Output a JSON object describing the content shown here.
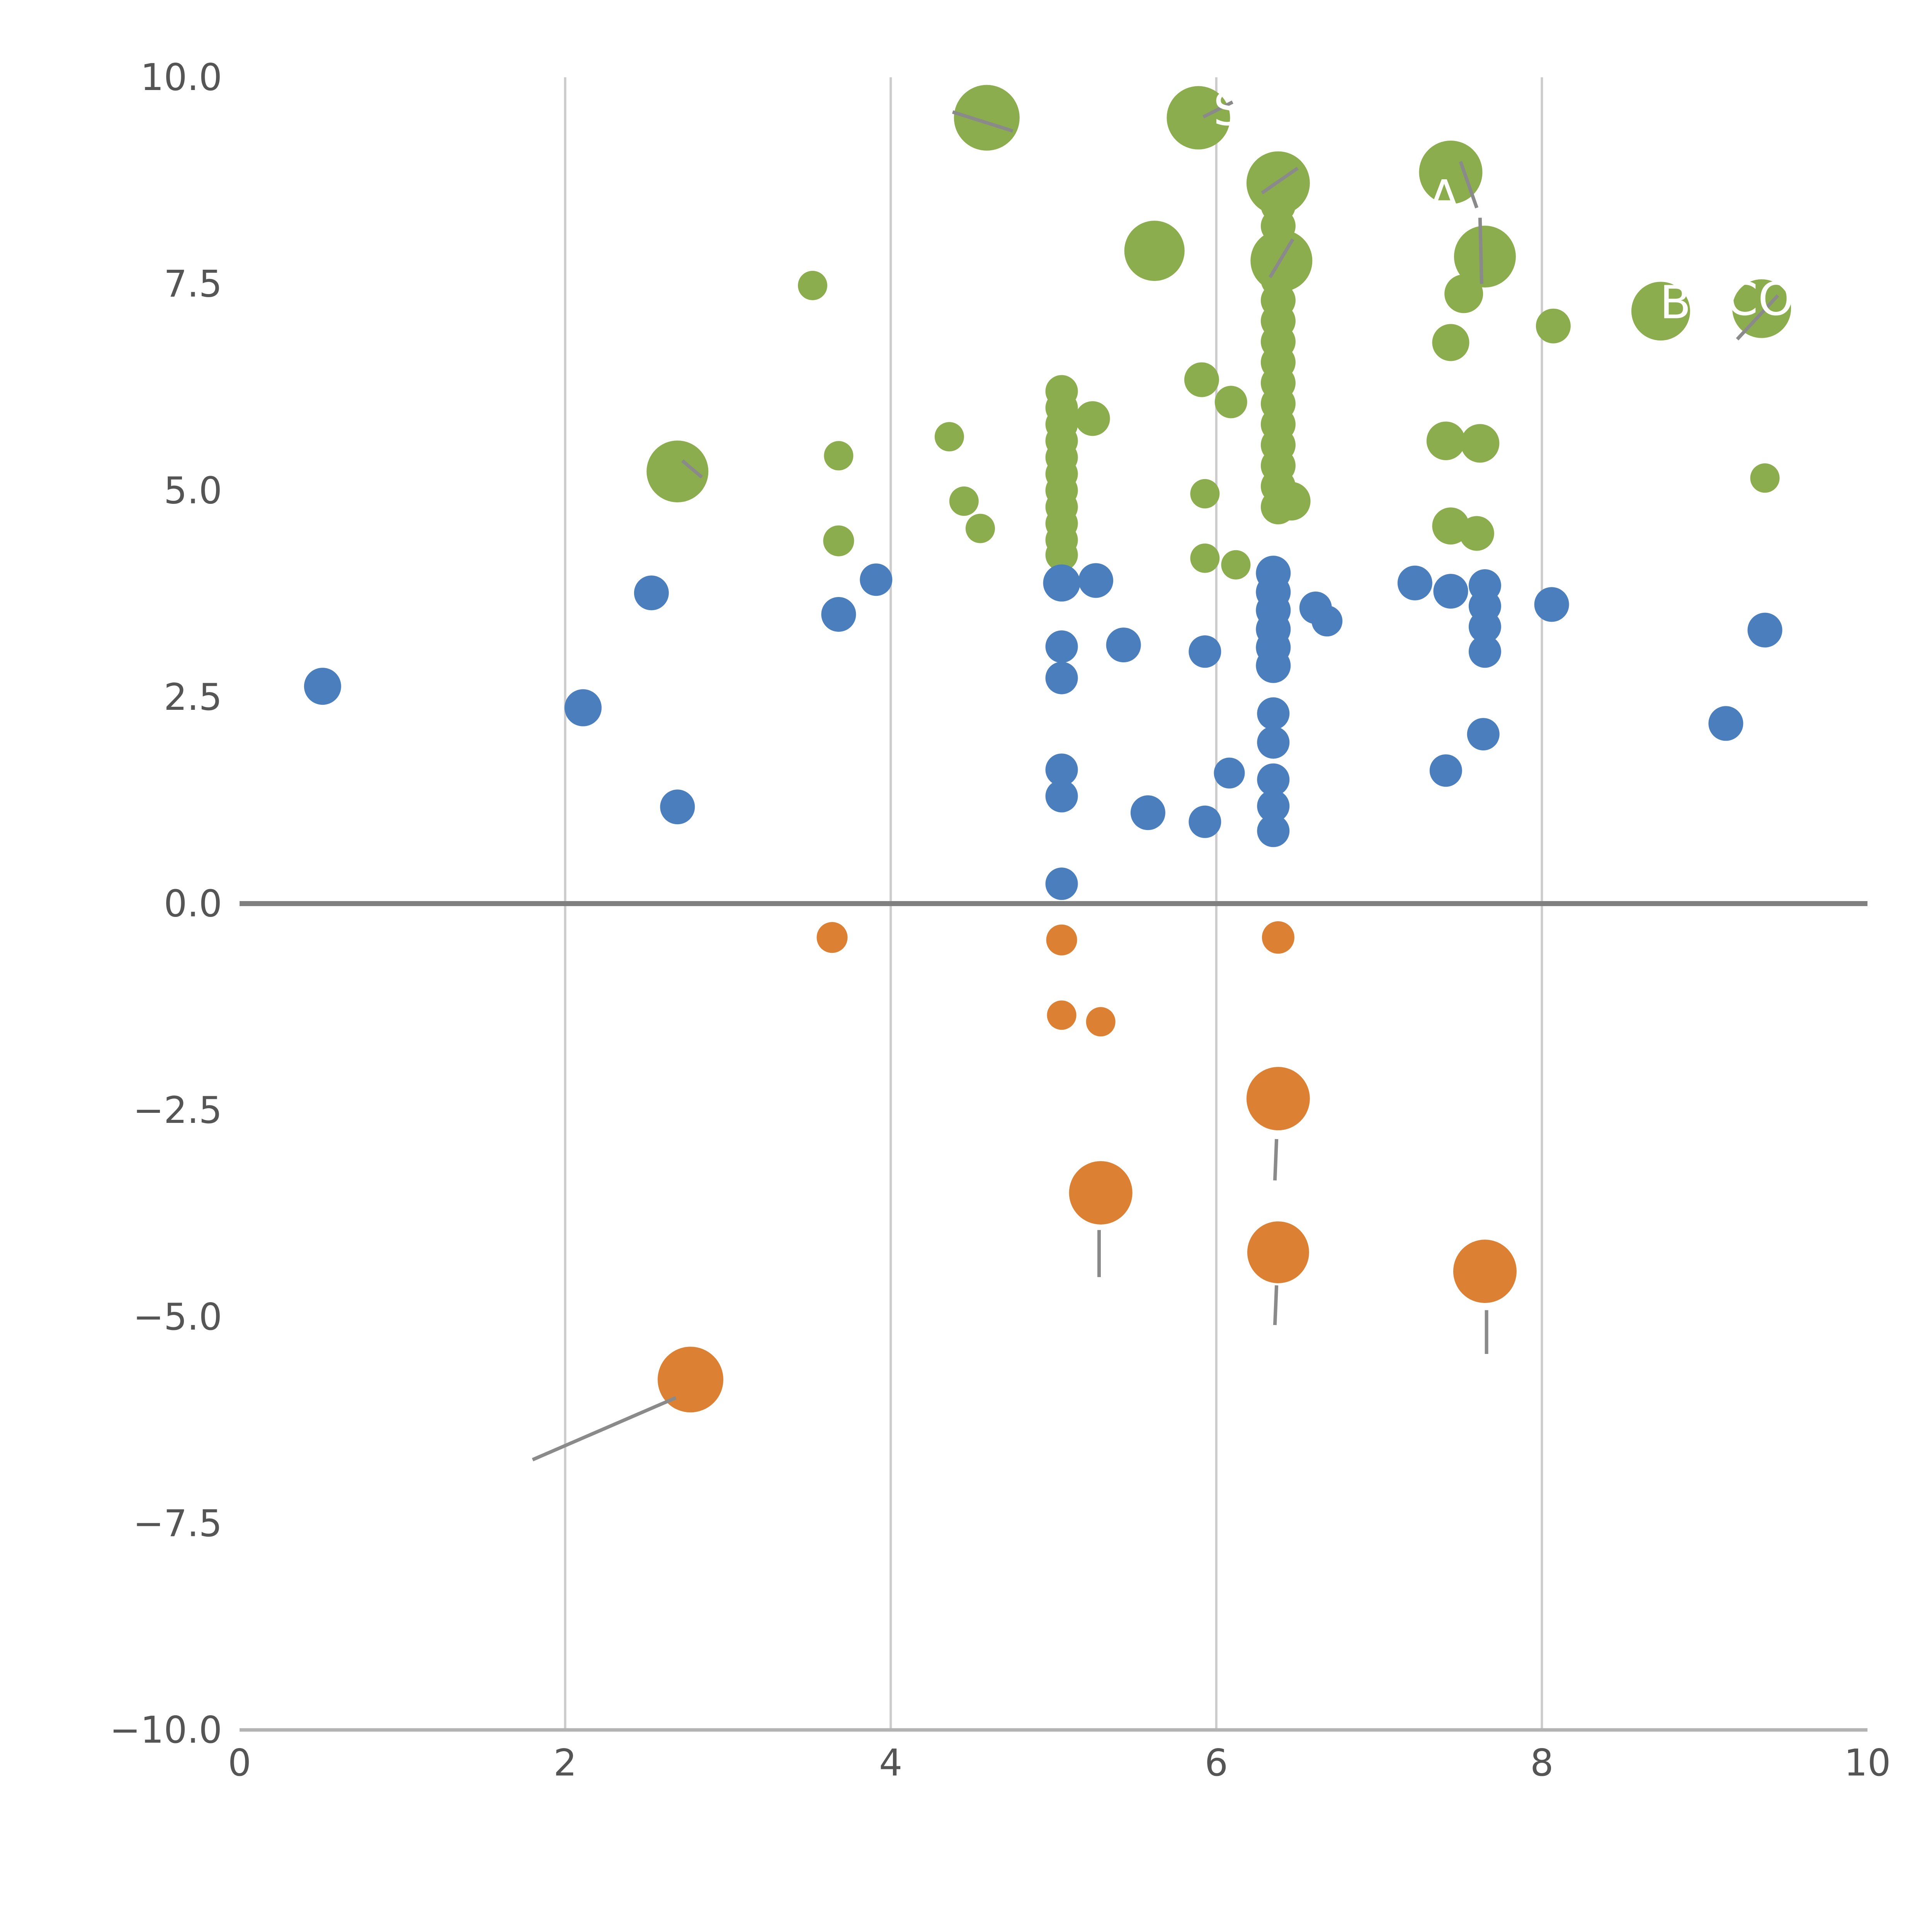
{
  "chart_data": {
    "type": "scatter",
    "title": "",
    "xlabel": "",
    "ylabel": "",
    "xlim": [
      0,
      10
    ],
    "ylim": [
      -10,
      10
    ],
    "x_ticks": [
      0,
      2,
      4,
      6,
      8,
      10
    ],
    "x_tick_labels": [
      "0",
      "2",
      "4",
      "6",
      "8",
      "10"
    ],
    "y_ticks": [
      10.0,
      7.5,
      5.0,
      2.5,
      0.0,
      -2.5,
      -5.0,
      -7.5,
      -10.0
    ],
    "y_tick_labels": [
      "10.0",
      "7.5",
      "5.0",
      "2.5",
      "0.0",
      "−2.5",
      "−5.0",
      "−7.5",
      "−10.0"
    ],
    "grid": {
      "vertical_x": [
        2,
        4,
        6,
        8
      ],
      "horizontal": false,
      "zero_line_y": 0
    },
    "legend": "none",
    "colors": {
      "green": "#8cad4e",
      "blue": "#4a7ebc",
      "orange": "#dc8133",
      "grid": "#cccccc",
      "zero_line": "#808080",
      "spine": "#b3b3b3",
      "tick_label": "#555555",
      "leader_line": "#8a8a8a",
      "annotation_text": "#ffffff"
    },
    "series": [
      {
        "name": "green",
        "color": "#8cad4e",
        "points": [
          [
            4.59,
            9.51,
            85
          ],
          [
            5.89,
            9.51,
            82
          ],
          [
            6.38,
            8.72,
            82
          ],
          [
            7.44,
            8.85,
            82
          ],
          [
            5.62,
            7.9,
            78
          ],
          [
            6.4,
            7.78,
            80
          ],
          [
            7.65,
            7.83,
            80
          ],
          [
            8.73,
            7.17,
            76
          ],
          [
            9.35,
            7.2,
            76
          ],
          [
            2.69,
            5.23,
            80
          ],
          [
            7.52,
            7.38,
            50
          ],
          [
            8.07,
            6.99,
            45
          ],
          [
            7.44,
            6.79,
            48
          ],
          [
            5.91,
            6.34,
            45
          ],
          [
            6.09,
            6.07,
            42
          ],
          [
            5.24,
            5.87,
            45
          ],
          [
            7.41,
            5.6,
            50
          ],
          [
            7.62,
            5.57,
            50
          ],
          [
            6.46,
            4.87,
            50
          ],
          [
            7.44,
            4.57,
            48
          ],
          [
            7.6,
            4.48,
            45
          ],
          [
            3.52,
            7.48,
            38
          ],
          [
            4.36,
            5.65,
            38
          ],
          [
            3.68,
            5.42,
            38
          ],
          [
            9.37,
            5.15,
            38
          ],
          [
            4.45,
            4.87,
            38
          ],
          [
            4.55,
            4.54,
            38
          ],
          [
            3.68,
            4.39,
            40
          ],
          [
            5.93,
            4.18,
            38
          ],
          [
            6.12,
            4.1,
            38
          ],
          [
            5.93,
            4.96,
            38
          ],
          [
            6.38,
            8.45,
            45
          ],
          [
            6.38,
            8.2,
            45
          ],
          [
            6.38,
            7.55,
            45
          ],
          [
            6.38,
            7.3,
            45
          ],
          [
            6.38,
            7.05,
            45
          ],
          [
            6.38,
            6.8,
            45
          ],
          [
            6.38,
            6.55,
            45
          ],
          [
            6.38,
            6.3,
            45
          ],
          [
            6.38,
            6.05,
            45
          ],
          [
            6.38,
            5.8,
            45
          ],
          [
            6.38,
            5.55,
            45
          ],
          [
            6.38,
            5.3,
            45
          ],
          [
            6.38,
            5.05,
            45
          ],
          [
            6.38,
            4.8,
            45
          ],
          [
            5.05,
            6.2,
            42
          ],
          [
            5.05,
            6.0,
            42
          ],
          [
            5.05,
            5.8,
            42
          ],
          [
            5.05,
            5.6,
            42
          ],
          [
            5.05,
            5.4,
            42
          ],
          [
            5.05,
            5.2,
            42
          ],
          [
            5.05,
            5.0,
            42
          ],
          [
            5.05,
            4.8,
            42
          ],
          [
            5.05,
            4.6,
            42
          ],
          [
            5.05,
            4.4,
            42
          ],
          [
            5.05,
            4.22,
            42
          ]
        ]
      },
      {
        "name": "blue",
        "color": "#4a7ebc",
        "points": [
          [
            0.51,
            2.63,
            48
          ],
          [
            2.11,
            2.37,
            48
          ],
          [
            2.53,
            3.76,
            45
          ],
          [
            2.69,
            1.17,
            45
          ],
          [
            3.68,
            3.5,
            45
          ],
          [
            3.91,
            3.92,
            42
          ],
          [
            5.05,
            3.88,
            48
          ],
          [
            5.26,
            3.91,
            45
          ],
          [
            5.05,
            3.11,
            42
          ],
          [
            5.43,
            3.13,
            45
          ],
          [
            5.05,
            2.73,
            42
          ],
          [
            5.05,
            1.62,
            42
          ],
          [
            5.05,
            1.3,
            42
          ],
          [
            5.05,
            0.24,
            42
          ],
          [
            5.58,
            1.1,
            45
          ],
          [
            5.93,
            3.05,
            42
          ],
          [
            5.93,
            0.99,
            42
          ],
          [
            6.08,
            1.58,
            40
          ],
          [
            6.35,
            4.0,
            45
          ],
          [
            6.35,
            3.77,
            45
          ],
          [
            6.35,
            3.55,
            45
          ],
          [
            6.35,
            3.32,
            45
          ],
          [
            6.35,
            3.1,
            45
          ],
          [
            6.35,
            2.88,
            45
          ],
          [
            6.35,
            2.3,
            42
          ],
          [
            6.35,
            1.95,
            42
          ],
          [
            6.35,
            1.5,
            42
          ],
          [
            6.35,
            1.18,
            42
          ],
          [
            6.35,
            0.88,
            42
          ],
          [
            6.61,
            3.58,
            42
          ],
          [
            6.68,
            3.42,
            40
          ],
          [
            7.22,
            3.88,
            45
          ],
          [
            7.44,
            3.78,
            45
          ],
          [
            7.41,
            1.61,
            42
          ],
          [
            7.65,
            3.85,
            42
          ],
          [
            7.65,
            3.6,
            42
          ],
          [
            7.65,
            3.35,
            42
          ],
          [
            7.65,
            3.05,
            42
          ],
          [
            7.64,
            2.05,
            42
          ],
          [
            8.06,
            3.62,
            45
          ],
          [
            9.13,
            2.18,
            45
          ],
          [
            9.37,
            3.31,
            45
          ]
        ]
      },
      {
        "name": "orange",
        "color": "#dc8133",
        "points": [
          [
            3.64,
            -0.41,
            40
          ],
          [
            5.05,
            -0.44,
            40
          ],
          [
            5.05,
            -1.35,
            38
          ],
          [
            5.29,
            -1.43,
            38
          ],
          [
            6.38,
            -0.41,
            42
          ],
          [
            6.38,
            -2.36,
            82
          ],
          [
            5.29,
            -3.5,
            82
          ],
          [
            6.38,
            -4.22,
            80
          ],
          [
            7.65,
            -4.45,
            82
          ],
          [
            2.77,
            -5.76,
            85
          ]
        ]
      }
    ],
    "annotations": [
      {
        "text": "S",
        "x": 6.07,
        "y": 9.62
      },
      {
        "text": "A",
        "x": 7.4,
        "y": 8.56
      },
      {
        "text": "B",
        "x": 8.82,
        "y": 7.28
      },
      {
        "text": "CO",
        "x": 9.34,
        "y": 7.32
      }
    ],
    "leader_lines": [
      [
        4.38,
        9.58,
        4.75,
        9.35
      ],
      [
        5.92,
        9.52,
        6.1,
        9.7
      ],
      [
        6.28,
        8.6,
        6.5,
        8.9
      ],
      [
        7.5,
        8.98,
        7.6,
        8.42
      ],
      [
        7.62,
        8.3,
        7.63,
        7.5
      ],
      [
        6.33,
        7.58,
        6.47,
        8.04
      ],
      [
        9.2,
        6.83,
        9.45,
        7.36
      ],
      [
        2.72,
        5.36,
        2.84,
        5.16
      ],
      [
        6.37,
        -2.85,
        6.36,
        -3.35
      ],
      [
        5.28,
        -3.95,
        5.28,
        -4.52
      ],
      [
        6.37,
        -4.62,
        6.36,
        -5.1
      ],
      [
        7.66,
        -4.92,
        7.66,
        -5.45
      ],
      [
        2.68,
        -5.98,
        1.8,
        -6.73
      ]
    ]
  }
}
